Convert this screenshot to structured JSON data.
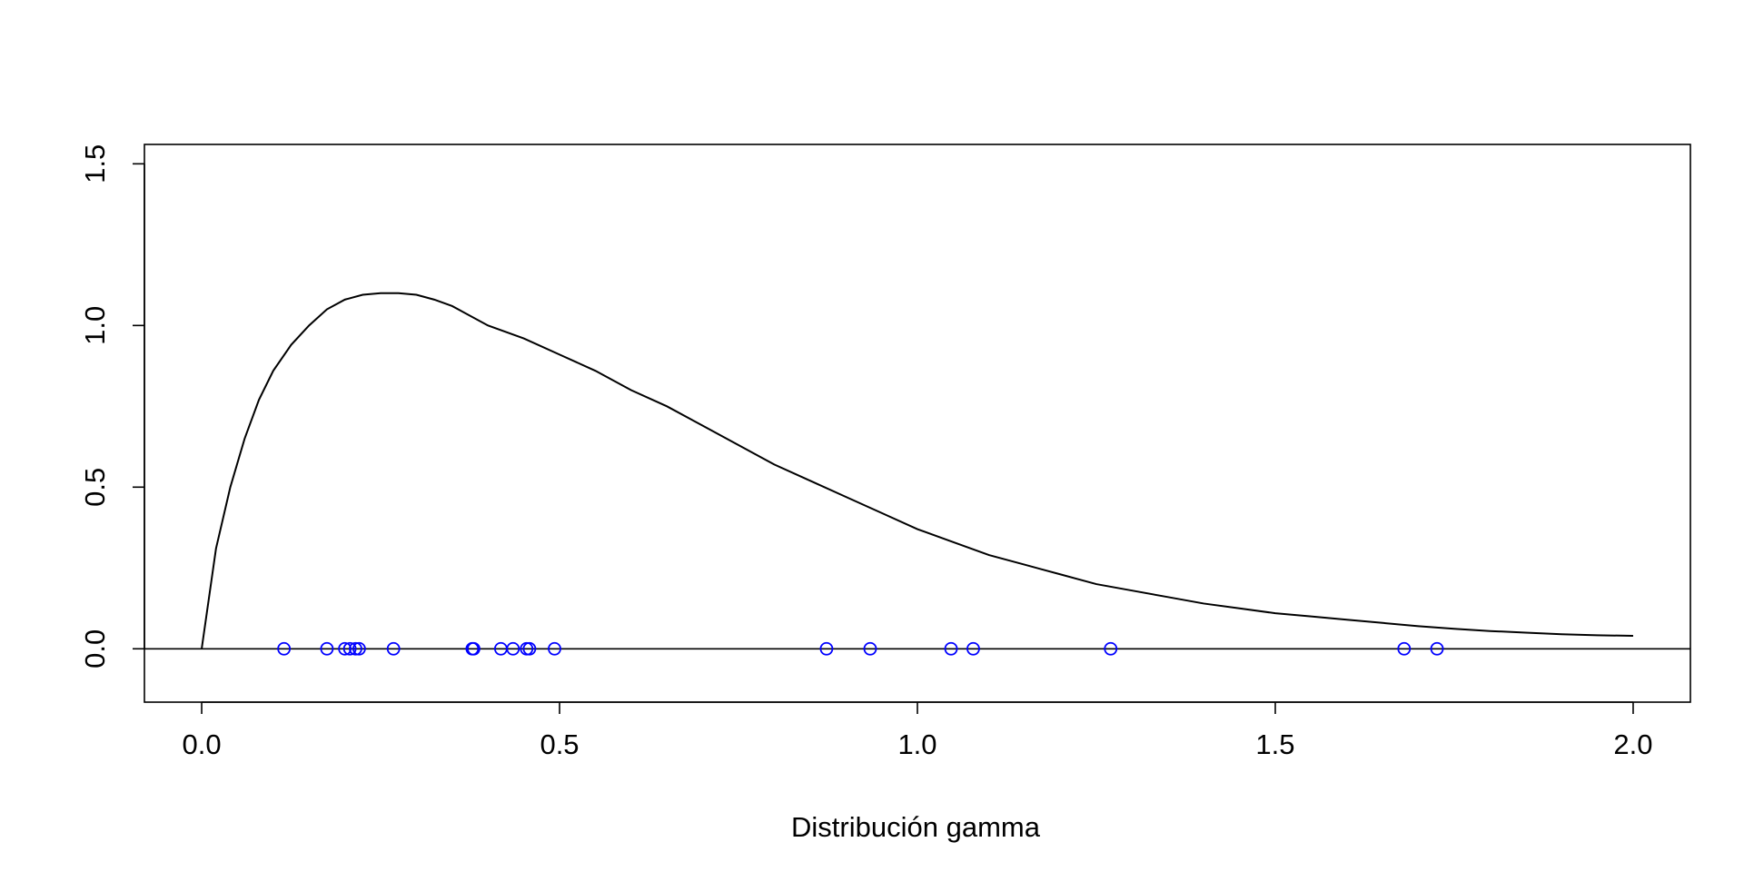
{
  "chart_data": {
    "type": "line",
    "title": "",
    "xlabel": "Distribución gamma",
    "ylabel": "",
    "xlim": [
      -0.08,
      2.08
    ],
    "ylim": [
      -0.165,
      1.56
    ],
    "x_ticks": [
      0.0,
      0.5,
      1.0,
      1.5,
      2.0
    ],
    "x_tick_labels": [
      "0.0",
      "0.5",
      "1.0",
      "1.5",
      "2.0"
    ],
    "y_ticks": [
      0.0,
      0.5,
      1.0,
      1.5
    ],
    "y_tick_labels": [
      "0.0",
      "0.5",
      "1.0",
      "1.5"
    ],
    "grid": false,
    "legend": "none",
    "horizontal_line": 0.0,
    "series": [
      {
        "kind": "line",
        "color": "#000000",
        "x": [
          0.0,
          0.02,
          0.04,
          0.06,
          0.08,
          0.1,
          0.125,
          0.15,
          0.175,
          0.2,
          0.225,
          0.25,
          0.275,
          0.3,
          0.325,
          0.35,
          0.4,
          0.45,
          0.5,
          0.55,
          0.6,
          0.65,
          0.7,
          0.75,
          0.8,
          0.85,
          0.9,
          0.95,
          1.0,
          1.05,
          1.1,
          1.15,
          1.2,
          1.25,
          1.3,
          1.35,
          1.4,
          1.45,
          1.5,
          1.55,
          1.6,
          1.65,
          1.7,
          1.75,
          1.8,
          1.85,
          1.9,
          1.95,
          2.0
        ],
        "y": [
          0.0,
          0.31,
          0.5,
          0.65,
          0.77,
          0.86,
          0.94,
          1.0,
          1.05,
          1.08,
          1.095,
          1.1,
          1.1,
          1.095,
          1.08,
          1.06,
          1.0,
          0.96,
          0.91,
          0.86,
          0.8,
          0.75,
          0.69,
          0.63,
          0.57,
          0.52,
          0.47,
          0.42,
          0.37,
          0.33,
          0.29,
          0.26,
          0.23,
          0.2,
          0.18,
          0.16,
          0.14,
          0.125,
          0.11,
          0.1,
          0.09,
          0.08,
          0.07,
          0.062,
          0.055,
          0.05,
          0.045,
          0.042,
          0.04
        ]
      },
      {
        "kind": "points",
        "color": "#0000ff",
        "x": [
          0.115,
          0.175,
          0.2,
          0.207,
          0.215,
          0.22,
          0.268,
          0.378,
          0.38,
          0.418,
          0.435,
          0.454,
          0.458,
          0.493,
          0.873,
          0.934,
          1.047,
          1.078,
          1.27,
          1.68,
          1.726
        ],
        "y": [
          0,
          0,
          0,
          0,
          0,
          0,
          0,
          0,
          0,
          0,
          0,
          0,
          0,
          0,
          0,
          0,
          0,
          0,
          0,
          0,
          0
        ]
      }
    ]
  }
}
